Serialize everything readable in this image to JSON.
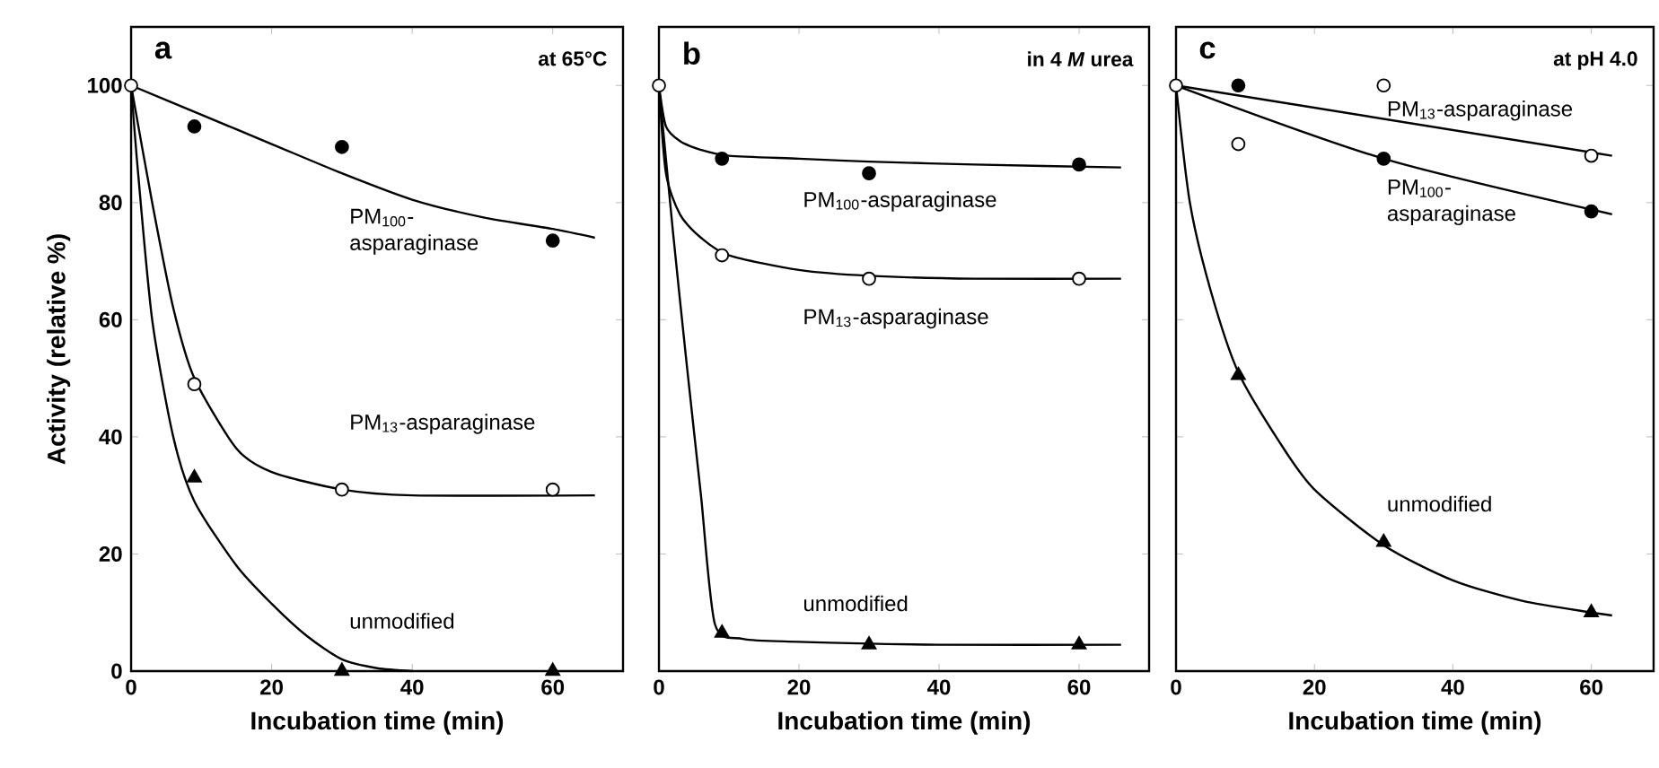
{
  "chart_data": [
    {
      "type": "scatter",
      "title": "a",
      "subtitle": "at 65°C",
      "xlabel": "Incubation time (min)",
      "ylabel": "Activity (relative %)",
      "xlim": [
        0,
        70
      ],
      "ylim": [
        0,
        110
      ],
      "xticks": [
        0,
        20,
        40,
        60
      ],
      "yticks": [
        0,
        20,
        40,
        60,
        80,
        100
      ],
      "series": [
        {
          "name": "PM$_{100}$-asparaginase",
          "type": "scatter",
          "marker": "circle",
          "color": "#000000",
          "x": [
            9,
            30,
            60
          ],
          "values": [
            93,
            89.5,
            73.5
          ]
        },
        {
          "name": "PM$_{13}$-asparaginase",
          "type": "scatter",
          "marker": "circle",
          "color": "#ffffff",
          "x": [
            0,
            9,
            30,
            60
          ],
          "values": [
            100,
            49,
            31,
            31
          ]
        },
        {
          "name": "unmodified",
          "type": "scatter",
          "marker": "triangle",
          "color": "#000000",
          "x": [
            9,
            30,
            60
          ],
          "values": [
            33,
            0,
            0
          ]
        },
        {
          "type": "line",
          "marker": "none",
          "color": "#000000",
          "x": [
            0,
            10,
            20,
            30,
            40,
            50,
            60,
            66
          ],
          "values": [
            100,
            95,
            90,
            85,
            80.5,
            77.5,
            75.5,
            74
          ]
        },
        {
          "type": "line",
          "marker": "none",
          "color": "#000000",
          "x": [
            0,
            3,
            6,
            9,
            15,
            20,
            30,
            40,
            66
          ],
          "values": [
            100,
            80,
            62,
            50,
            38,
            34,
            31,
            30,
            30
          ]
        },
        {
          "type": "line",
          "marker": "none",
          "color": "#000000",
          "x": [
            0,
            1,
            3,
            6,
            9,
            15,
            20,
            25,
            30,
            35,
            40
          ],
          "values": [
            100,
            85,
            60,
            40,
            29,
            18,
            11.5,
            6,
            2,
            0.5,
            0
          ]
        }
      ]
    },
    {
      "type": "scatter",
      "title": "b",
      "subtitle": "in 4 *M* urea",
      "xlabel": "Incubation time (min)",
      "xlim": [
        0,
        70
      ],
      "ylim": [
        0,
        110
      ],
      "xticks": [
        0,
        20,
        40,
        60
      ],
      "yticks": [
        0,
        20,
        40,
        60,
        80,
        100
      ],
      "tick_labels": "x",
      "series": [
        {
          "name": "PM$_{100}$-asparaginase",
          "type": "scatter",
          "marker": "circle",
          "color": "#000000",
          "x": [
            9,
            30,
            60
          ],
          "values": [
            87.5,
            85,
            86.5
          ]
        },
        {
          "name": "PM$_{13}$-asparaginase",
          "type": "scatter",
          "marker": "circle",
          "color": "#ffffff",
          "x": [
            0,
            9,
            30,
            60
          ],
          "values": [
            100,
            71,
            67,
            67
          ]
        },
        {
          "name": "unmodified",
          "type": "scatter",
          "marker": "triangle",
          "color": "#000000",
          "x": [
            9,
            30,
            60
          ],
          "values": [
            6.5,
            4.5,
            4.5
          ]
        },
        {
          "type": "line",
          "marker": "none",
          "color": "#000000",
          "x": [
            0,
            1,
            3,
            6,
            10,
            20,
            30,
            45,
            66
          ],
          "values": [
            100,
            93,
            90.5,
            89,
            88,
            87.5,
            87,
            86.5,
            86
          ]
        },
        {
          "type": "line",
          "marker": "none",
          "color": "#000000",
          "x": [
            0,
            1,
            3,
            6,
            10,
            20,
            30,
            45,
            66
          ],
          "values": [
            100,
            85,
            78,
            74,
            71,
            68.5,
            67.5,
            67,
            67
          ]
        },
        {
          "type": "line",
          "marker": "none",
          "color": "#000000",
          "x": [
            0,
            2,
            4,
            6,
            8,
            12,
            20,
            40,
            66
          ],
          "values": [
            100,
            75,
            52,
            30,
            8,
            5.5,
            5,
            4.5,
            4.5
          ]
        }
      ]
    },
    {
      "type": "scatter",
      "title": "c",
      "subtitle": "at pH 4.0",
      "xlabel": "Incubation time (min)",
      "xlim": [
        0,
        69
      ],
      "ylim": [
        0,
        110
      ],
      "xticks": [
        0,
        20,
        40,
        60
      ],
      "yticks": [
        0,
        20,
        40,
        60,
        80,
        100
      ],
      "tick_labels": "x",
      "series": [
        {
          "name": "PM$_{13}$-asparaginase",
          "type": "scatter",
          "marker": "circle",
          "color": "#ffffff",
          "x": [
            0,
            9,
            30,
            60
          ],
          "values": [
            100,
            90,
            100,
            88
          ]
        },
        {
          "name": "PM$_{100}$-asparaginase",
          "type": "scatter",
          "marker": "circle",
          "color": "#000000",
          "x": [
            9,
            30,
            60
          ],
          "values": [
            100,
            87.5,
            78.5
          ]
        },
        {
          "name": "unmodified",
          "type": "scatter",
          "marker": "triangle",
          "color": "#000000",
          "x": [
            9,
            30,
            60
          ],
          "values": [
            50.5,
            22,
            10
          ]
        },
        {
          "type": "line",
          "marker": "none",
          "color": "#000000",
          "x": [
            0,
            63
          ],
          "values": [
            100,
            88
          ]
        },
        {
          "type": "line",
          "marker": "none",
          "color": "#000000",
          "x": [
            0,
            30,
            63
          ],
          "values": [
            100,
            87.5,
            78
          ]
        },
        {
          "type": "line",
          "marker": "none",
          "color": "#000000",
          "x": [
            0,
            2,
            5,
            9,
            15,
            20,
            30,
            40,
            50,
            60,
            63
          ],
          "values": [
            100,
            80,
            65,
            51,
            39,
            31,
            21.5,
            15.5,
            12,
            10,
            9.5
          ]
        }
      ]
    }
  ]
}
